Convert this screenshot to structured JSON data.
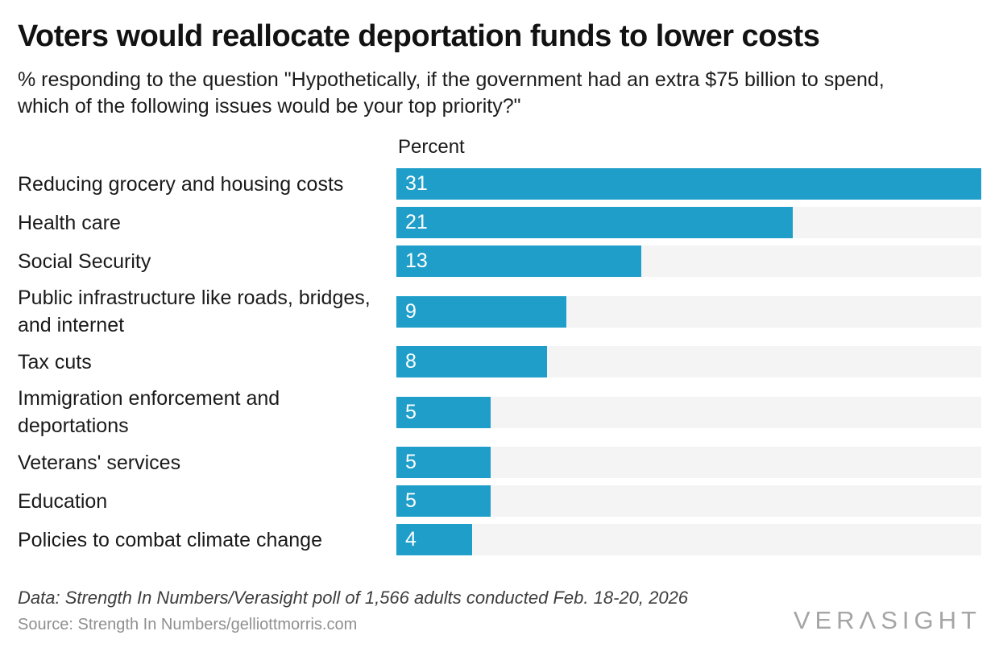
{
  "title": "Voters would reallocate deportation funds to lower costs",
  "subtitle_lines": [
    "% responding to the question \"Hypothetically, if the government had an extra $75 billion to spend,",
    "which of the following issues would be your top priority?\""
  ],
  "chart_data": {
    "type": "bar",
    "orientation": "horizontal",
    "value_header": "Percent",
    "categories": [
      "Reducing grocery and housing costs",
      "Health care",
      "Social Security",
      "Public infrastructure like roads, bridges, and internet",
      "Tax cuts",
      "Immigration enforcement and deportations",
      "Veterans' services",
      "Education",
      "Policies to combat climate change"
    ],
    "values": [
      31,
      21,
      13,
      9,
      8,
      5,
      5,
      5,
      4
    ],
    "xlim": [
      0,
      31
    ],
    "value_labels_inside_bars": true,
    "grid": "off",
    "colors": {
      "bar": "#1e9ec9",
      "track": "#f4f4f4",
      "value_label": "#ffffff"
    }
  },
  "footer": {
    "data_note": "Data: Strength In Numbers/Verasight poll of 1,566 adults conducted Feb. 18-20, 2026",
    "source": "Source: Strength In Numbers/gelliottmorris.com",
    "logo_text": "VERΛSIGHT"
  }
}
